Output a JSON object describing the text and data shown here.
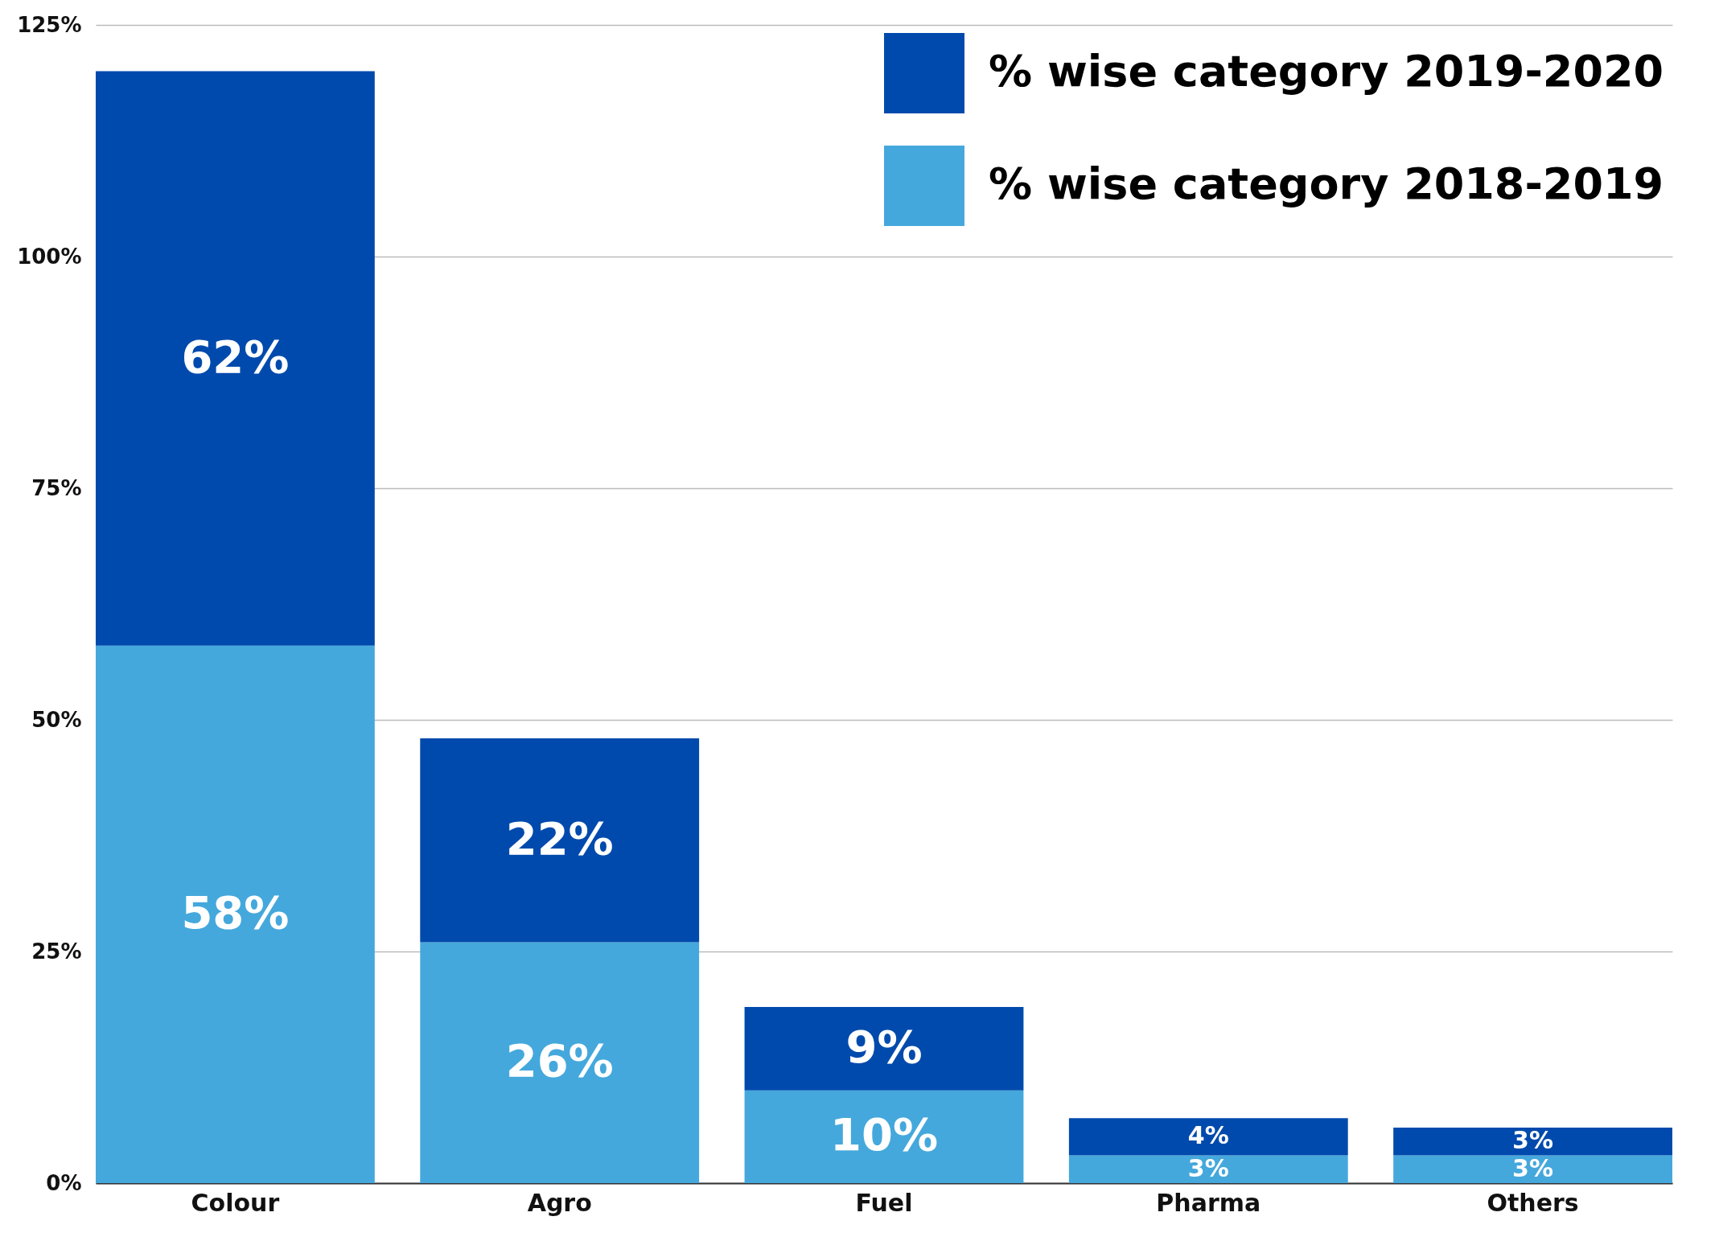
{
  "chart_data": {
    "type": "bar",
    "stacked": true,
    "categories": [
      "Colour",
      "Agro",
      "Fuel",
      "Pharma",
      "Others"
    ],
    "series": [
      {
        "name": "% wise category 2018-2019",
        "color": "#45a8dc",
        "values": [
          58,
          26,
          10,
          3,
          3
        ],
        "value_labels": [
          "58%",
          "26%",
          "10%",
          "3%",
          "3%"
        ]
      },
      {
        "name": "% wise category 2019-2020",
        "color": "#004aad",
        "values": [
          62,
          22,
          9,
          4,
          3
        ],
        "value_labels": [
          "62%",
          "22%",
          "9%",
          "4%",
          "3%"
        ]
      }
    ],
    "ylim": [
      0,
      125
    ],
    "yticks": [
      {
        "value": 0,
        "label": "0%"
      },
      {
        "value": 25,
        "label": "25%"
      },
      {
        "value": 50,
        "label": "50%"
      },
      {
        "value": 75,
        "label": "75%"
      },
      {
        "value": 100,
        "label": "100%"
      },
      {
        "value": 125,
        "label": "125%"
      }
    ],
    "grid": "y",
    "legend": "top right"
  }
}
